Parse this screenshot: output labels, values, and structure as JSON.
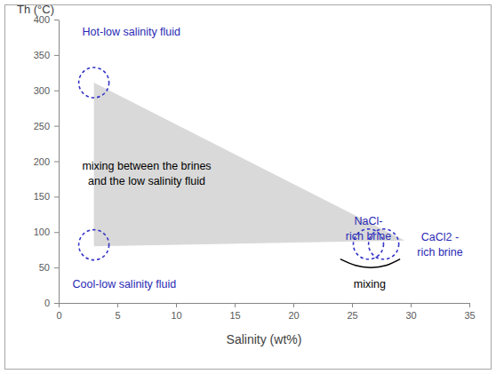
{
  "chart_data": {
    "type": "scatter",
    "x_label": "Salinity (wt%)",
    "y_label": "Th (°C)",
    "xlim": [
      0,
      35
    ],
    "ylim": [
      0,
      400
    ],
    "xticks": [
      0,
      5,
      10,
      15,
      20,
      25,
      30,
      35
    ],
    "yticks": [
      0,
      50,
      100,
      150,
      200,
      250,
      300,
      350,
      400
    ],
    "grid": false,
    "series": [
      {
        "type": "polygon",
        "color": "#d9d9d9",
        "x": [
          3,
          3,
          29.5
        ],
        "y": [
          311,
          80,
          88
        ]
      },
      {
        "type": "scatter",
        "marker": "circle",
        "line_style": "dashed",
        "color": "#3535c8",
        "x": [
          3,
          3,
          26.4,
          27.7
        ],
        "y": [
          311,
          82,
          83,
          83
        ]
      },
      {
        "type": "line",
        "color": "#000000",
        "x": [
          24,
          25.3,
          26.6,
          27.9,
          29.1
        ],
        "y": [
          62,
          53,
          50,
          53,
          62
        ]
      }
    ],
    "annotations": [
      {
        "text": [
          "Hot-low salinity fluid"
        ],
        "x": 6.2,
        "y": 381,
        "color": "#2a2ab4"
      },
      {
        "text": [
          "mixing between the brines",
          "and the low salinity fluid"
        ],
        "x": 7.5,
        "y": 192,
        "color": "#000000"
      },
      {
        "text": [
          "Cool-low salinity fluid"
        ],
        "x": 5.6,
        "y": 26,
        "color": "#2a2ab4"
      },
      {
        "text": [
          "NaCl-",
          "rich brine"
        ],
        "x": 26.4,
        "y": 114,
        "color": "#2a2ab4"
      },
      {
        "text": [
          "CaCl2 -",
          "rich brine"
        ],
        "x": 32.5,
        "y": 91.5,
        "color": "#2a2ab4"
      },
      {
        "text": [
          "mixing"
        ],
        "x": 26.5,
        "y": 26,
        "color": "#000000"
      }
    ]
  }
}
